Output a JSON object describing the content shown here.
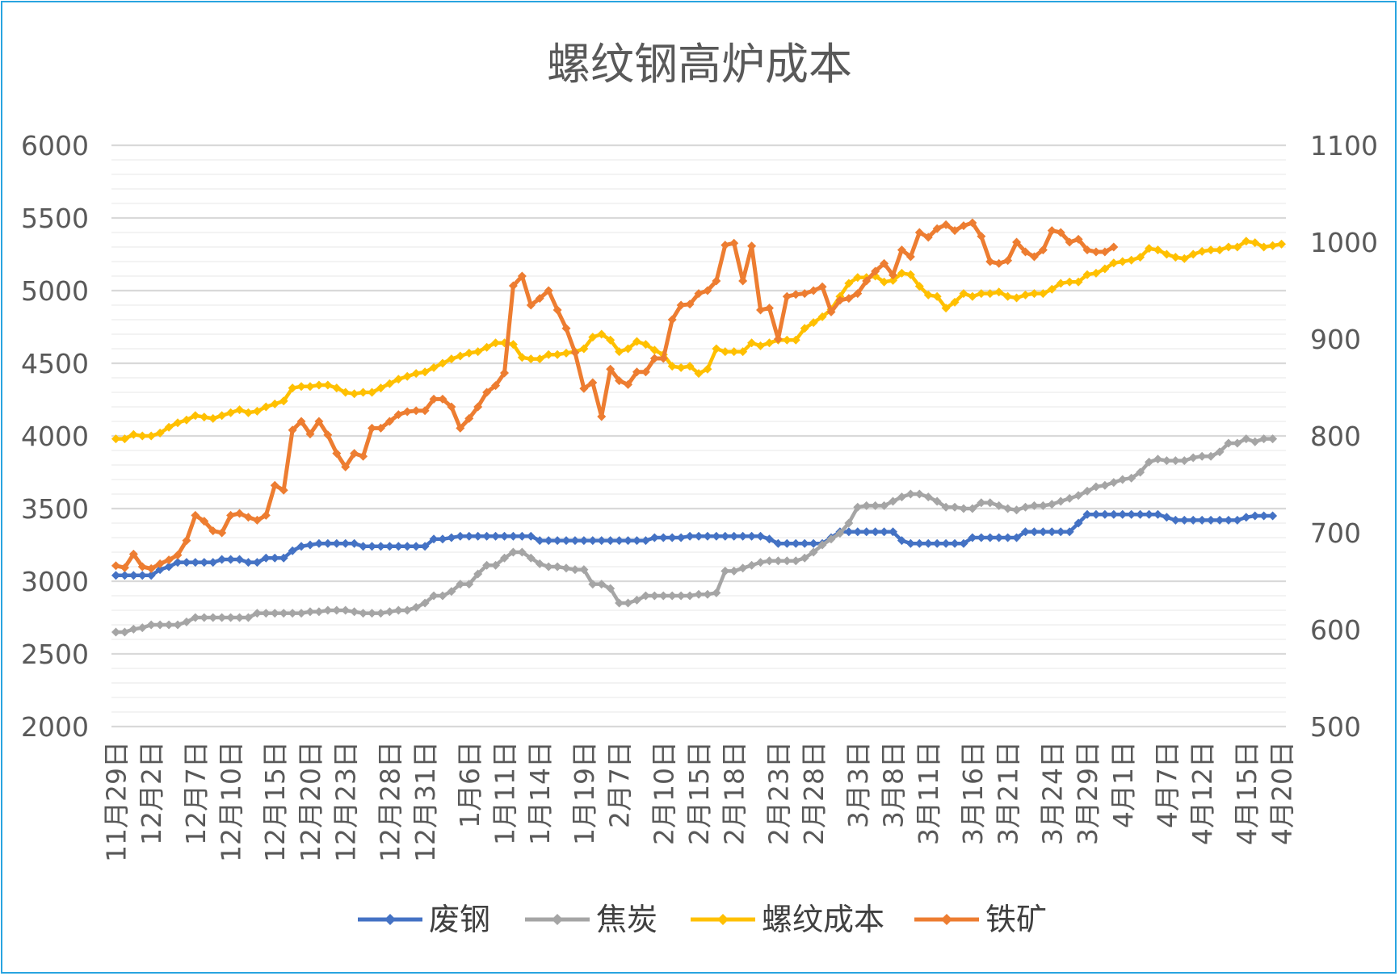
{
  "chart_data": {
    "type": "line",
    "title": "螺纹钢高炉成本",
    "y_left": {
      "lim": [
        2000,
        6000
      ],
      "ticks": [
        2000,
        2500,
        3000,
        3500,
        4000,
        4500,
        5000,
        5500,
        6000
      ]
    },
    "y_right": {
      "lim": [
        500,
        1100
      ],
      "ticks": [
        500,
        600,
        700,
        800,
        900,
        1000,
        1100
      ]
    },
    "grid": true,
    "legend_position": "bottom",
    "x_tick_labels": [
      "11月29日",
      "12月2日",
      "12月7日",
      "12月10日",
      "12月15日",
      "12月20日",
      "12月23日",
      "12月28日",
      "12月31日",
      "1月6日",
      "1月11日",
      "1月14日",
      "1月19日",
      "2月7日",
      "2月10日",
      "2月15日",
      "2月18日",
      "2月23日",
      "2月28日",
      "3月3日",
      "3月8日",
      "3月11日",
      "3月16日",
      "3月21日",
      "3月24日",
      "3月29日",
      "4月1日",
      "4月7日",
      "4月12日",
      "4月15日",
      "4月20日"
    ],
    "series": [
      {
        "name": "废钢",
        "axis": "left",
        "color": "#4472c4",
        "values": [
          3040,
          3040,
          3040,
          3040,
          3040,
          3080,
          3100,
          3130,
          3130,
          3130,
          3130,
          3130,
          3150,
          3150,
          3150,
          3130,
          3130,
          3160,
          3160,
          3160,
          3210,
          3240,
          3250,
          3260,
          3260,
          3260,
          3260,
          3260,
          3240,
          3240,
          3240,
          3240,
          3240,
          3240,
          3240,
          3240,
          3290,
          3290,
          3300,
          3310,
          3310,
          3310,
          3310,
          3310,
          3310,
          3310,
          3310,
          3310,
          3280,
          3280,
          3280,
          3280,
          3280,
          3280,
          3280,
          3280,
          3280,
          3280,
          3280,
          3280,
          3280,
          3300,
          3300,
          3300,
          3300,
          3310,
          3310,
          3310,
          3310,
          3310,
          3310,
          3310,
          3310,
          3310,
          3290,
          3260,
          3260,
          3260,
          3260,
          3260,
          3260,
          3300,
          3340,
          3340,
          3340,
          3340,
          3340,
          3340,
          3340,
          3280,
          3260,
          3260,
          3260,
          3260,
          3260,
          3260,
          3260,
          3300,
          3300,
          3300,
          3300,
          3300,
          3300,
          3340,
          3340,
          3340,
          3340,
          3340,
          3340,
          3400,
          3460,
          3460,
          3460,
          3460,
          3460,
          3460,
          3460,
          3460,
          3460,
          3440,
          3420,
          3420,
          3420,
          3420,
          3420,
          3420,
          3420,
          3420,
          3440,
          3450,
          3450,
          3450
        ]
      },
      {
        "name": "焦炭",
        "axis": "left",
        "color": "#a5a5a5",
        "values": [
          2650,
          2650,
          2670,
          2680,
          2700,
          2700,
          2700,
          2700,
          2720,
          2750,
          2750,
          2750,
          2750,
          2750,
          2750,
          2750,
          2780,
          2780,
          2780,
          2780,
          2780,
          2780,
          2790,
          2790,
          2800,
          2800,
          2800,
          2790,
          2780,
          2780,
          2780,
          2790,
          2800,
          2800,
          2820,
          2850,
          2900,
          2900,
          2930,
          2980,
          2980,
          3050,
          3110,
          3110,
          3160,
          3200,
          3200,
          3160,
          3120,
          3100,
          3100,
          3090,
          3080,
          3080,
          2980,
          2980,
          2950,
          2850,
          2850,
          2870,
          2900,
          2900,
          2900,
          2900,
          2900,
          2900,
          2910,
          2910,
          2920,
          3070,
          3070,
          3090,
          3110,
          3130,
          3140,
          3140,
          3140,
          3140,
          3160,
          3200,
          3250,
          3290,
          3330,
          3400,
          3510,
          3520,
          3520,
          3520,
          3550,
          3580,
          3600,
          3600,
          3580,
          3550,
          3510,
          3510,
          3500,
          3500,
          3540,
          3540,
          3520,
          3500,
          3490,
          3510,
          3520,
          3520,
          3530,
          3550,
          3570,
          3590,
          3620,
          3650,
          3660,
          3680,
          3700,
          3710,
          3750,
          3820,
          3840,
          3830,
          3830,
          3830,
          3850,
          3860,
          3860,
          3890,
          3950,
          3950,
          3980,
          3960,
          3980,
          3980
        ]
      },
      {
        "name": "螺纹成本",
        "axis": "left",
        "color": "#ffc000",
        "values": [
          3980,
          3980,
          4010,
          4000,
          4000,
          4020,
          4060,
          4090,
          4110,
          4140,
          4130,
          4120,
          4140,
          4160,
          4180,
          4160,
          4170,
          4200,
          4220,
          4240,
          4330,
          4340,
          4340,
          4350,
          4350,
          4330,
          4300,
          4290,
          4300,
          4300,
          4330,
          4360,
          4390,
          4410,
          4430,
          4440,
          4470,
          4500,
          4530,
          4550,
          4570,
          4580,
          4610,
          4640,
          4640,
          4630,
          4540,
          4530,
          4530,
          4560,
          4560,
          4570,
          4580,
          4600,
          4680,
          4700,
          4660,
          4580,
          4600,
          4650,
          4630,
          4590,
          4560,
          4480,
          4470,
          4480,
          4430,
          4460,
          4600,
          4580,
          4580,
          4580,
          4640,
          4620,
          4640,
          4660,
          4660,
          4660,
          4740,
          4780,
          4820,
          4870,
          4960,
          5050,
          5090,
          5090,
          5100,
          5060,
          5070,
          5120,
          5110,
          5030,
          4970,
          4960,
          4880,
          4920,
          4980,
          4960,
          4980,
          4980,
          4990,
          4960,
          4950,
          4970,
          4980,
          4980,
          5010,
          5050,
          5060,
          5060,
          5110,
          5120,
          5150,
          5190,
          5200,
          5210,
          5230,
          5290,
          5280,
          5250,
          5230,
          5220,
          5250,
          5270,
          5280,
          5280,
          5300,
          5300,
          5340,
          5330,
          5300,
          5310,
          5320
        ]
      },
      {
        "name": "铁矿",
        "axis": "right",
        "color": "#ed7d31",
        "values": [
          666,
          664,
          678,
          665,
          663,
          668,
          672,
          677,
          692,
          718,
          712,
          702,
          700,
          718,
          720,
          716,
          713,
          718,
          749,
          744,
          806,
          815,
          802,
          815,
          801,
          782,
          768,
          782,
          779,
          808,
          808,
          815,
          822,
          825,
          826,
          826,
          838,
          838,
          830,
          808,
          818,
          830,
          845,
          852,
          865,
          955,
          965,
          935,
          942,
          950,
          930,
          911,
          886,
          849,
          855,
          820,
          869,
          857,
          853,
          866,
          866,
          880,
          880,
          920,
          935,
          936,
          947,
          950,
          960,
          997,
          999,
          960,
          996,
          930,
          932,
          900,
          944,
          946,
          947,
          950,
          954,
          928,
          940,
          942,
          947,
          960,
          970,
          978,
          966,
          992,
          985,
          1010,
          1005,
          1014,
          1018,
          1012,
          1017,
          1020,
          1006,
          980,
          978,
          981,
          1000,
          990,
          985,
          992,
          1012,
          1010,
          1000,
          1003,
          992,
          990,
          990,
          995
        ]
      }
    ]
  }
}
